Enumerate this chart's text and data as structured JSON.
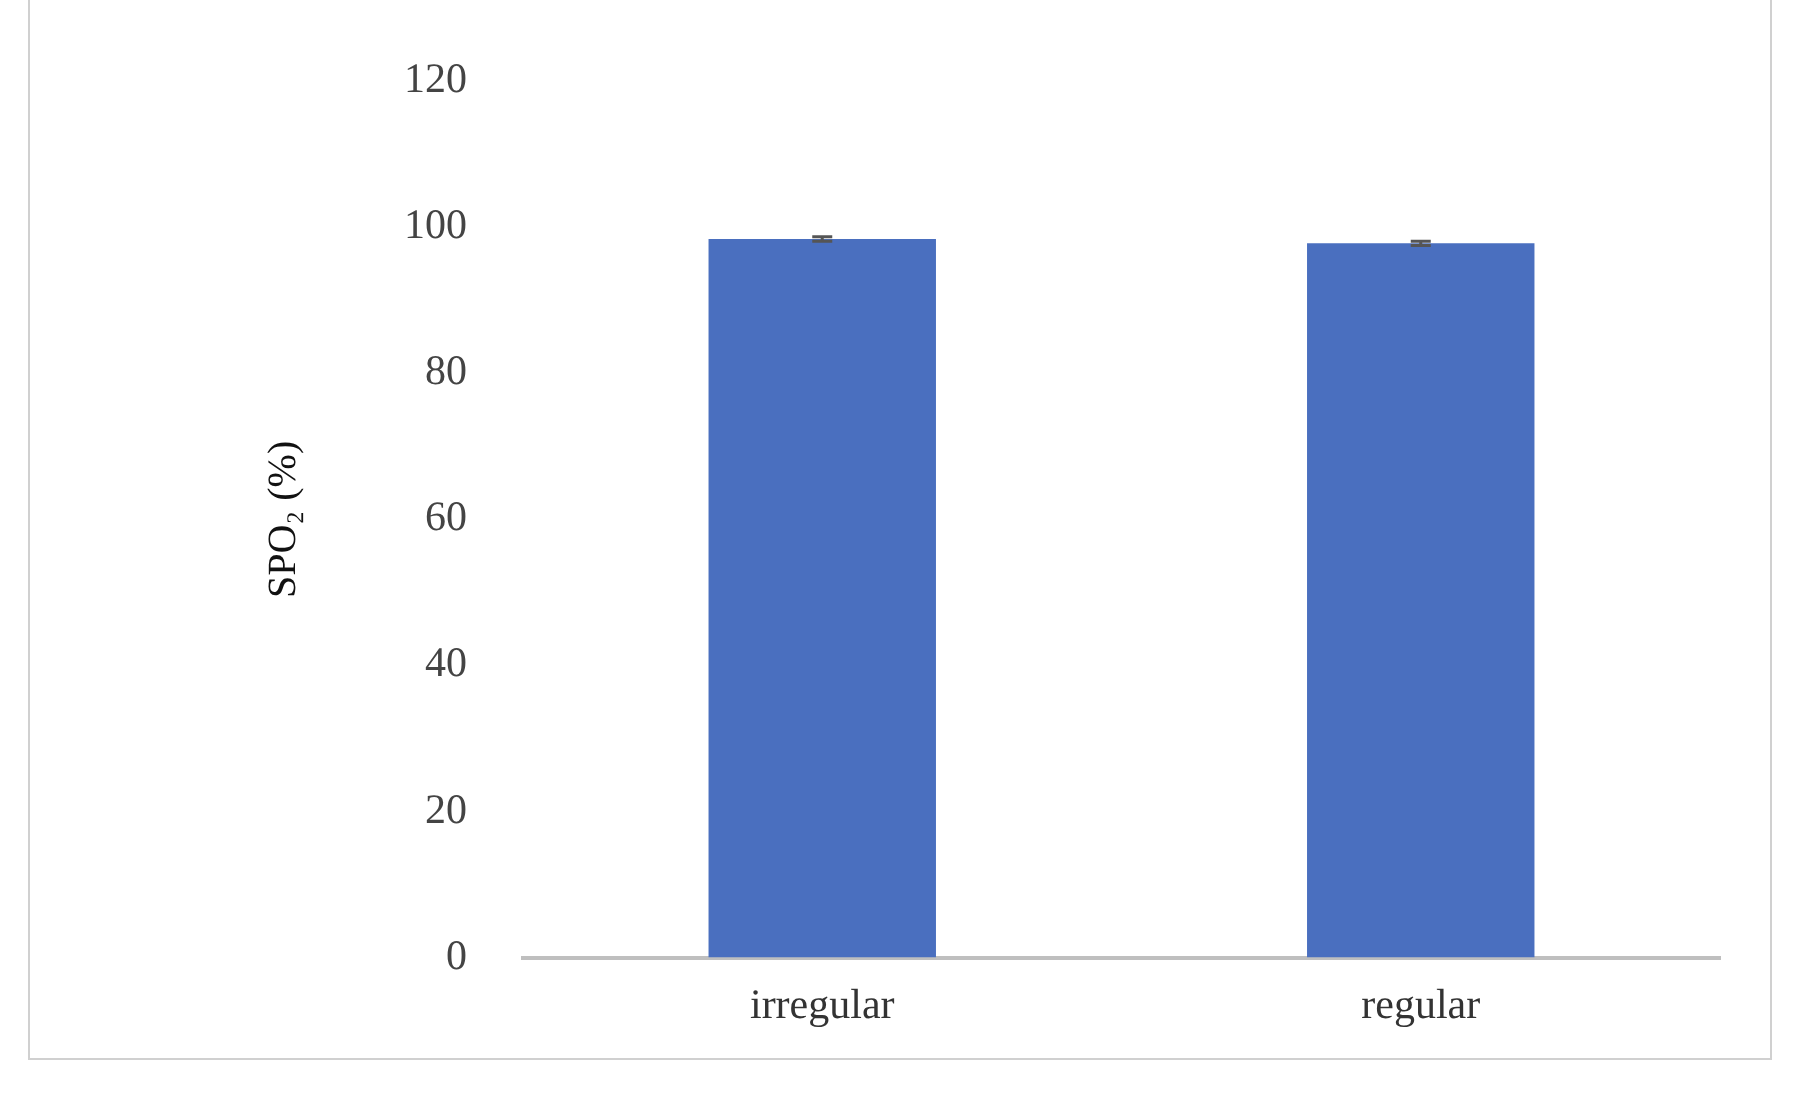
{
  "chart_data": {
    "type": "bar",
    "ylabel": "SPO₂ (%)",
    "categories": [
      "irregular",
      "regular"
    ],
    "values": [
      98.4,
      97.8
    ],
    "errors": [
      0.3,
      0.3
    ],
    "color": "#4a6fbf",
    "ylim": [
      0,
      120
    ],
    "yticks": [
      0,
      20,
      40,
      60,
      80,
      100,
      120
    ],
    "grid": false,
    "legend": false
  }
}
